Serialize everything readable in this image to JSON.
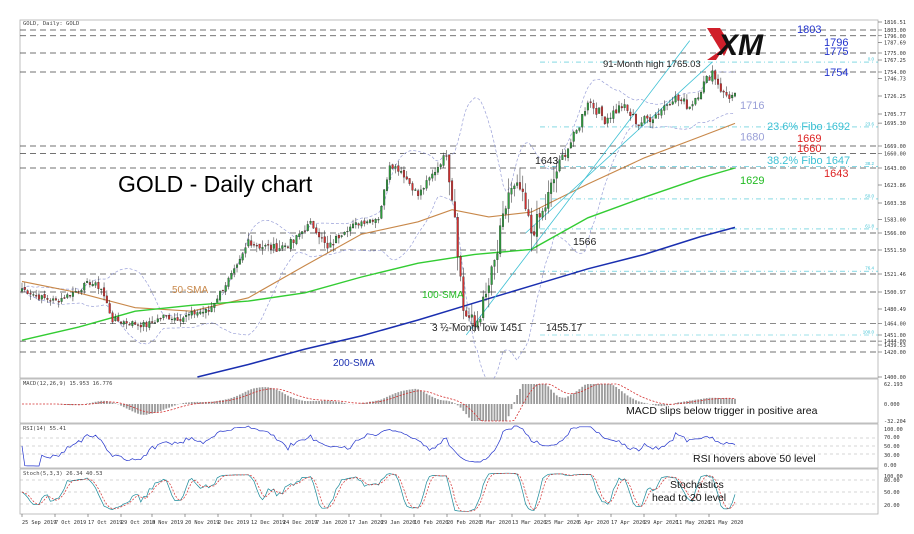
{
  "header": {
    "label": "GOLD, Daily: GOLD"
  },
  "logo": {
    "text": "XM"
  },
  "title": "GOLD - Daily chart",
  "colors": {
    "bull": "#2e9e3e",
    "bear": "#d43030",
    "sma50": "#c8884a",
    "sma100": "#33cc33",
    "sma200": "#1a2fb0",
    "bband": "#9aa0d8",
    "fibo": "#3fc1d4",
    "blue_label": "#2233cc",
    "red_label": "#dd2222",
    "green_label": "#22bb22"
  },
  "chart_data": [
    {
      "type": "candlestick",
      "title": "GOLD - Daily chart",
      "ylim": [
        1400,
        1820
      ],
      "x_ticks": [
        "25 Sep 2019",
        "7 Oct 2019",
        "17 Oct 2019",
        "29 Oct 2019",
        "8 Nov 2019",
        "20 Nov 2019",
        "2 Dec 2019",
        "12 Dec 2019",
        "24 Dec 2019",
        "7 Jan 2020",
        "17 Jan 2020",
        "29 Jan 2020",
        "10 Feb 2020",
        "20 Feb 2020",
        "3 Mar 2020",
        "13 Mar 2020",
        "25 Mar 2020",
        "6 Apr 2020",
        "17 Apr 2020",
        "29 Apr 2020",
        "11 May 2020",
        "21 May 2020"
      ],
      "y_ticks": [
        "1816.51",
        "1803.00",
        "1796.00",
        "1787.69",
        "1775.00",
        "1767.25",
        "1754.00",
        "1746.73",
        "1726.25",
        "1705.77",
        "1695.30",
        "1669.00",
        "1660.00",
        "1643.00",
        "1623.86",
        "1603.38",
        "1583.00",
        "1566.00",
        "1551.50",
        "1521.46",
        "1500.97",
        "1480.49",
        "1464.00",
        "1451.00",
        "1444.00",
        "1439.53",
        "1420.00",
        "1400.00"
      ],
      "levels": [
        {
          "value": 1803,
          "label": "1803",
          "color": "#2233cc"
        },
        {
          "value": 1796,
          "label": "1796",
          "color": "#2233cc"
        },
        {
          "value": 1775,
          "label": "1775",
          "color": "#2233cc"
        },
        {
          "value": 1754,
          "label": "1754",
          "color": "#2233cc"
        },
        {
          "value": 1716,
          "label": "1716",
          "color": "#9aa0d8"
        },
        {
          "value": 1692,
          "label": "23.6% Fibo 1692",
          "color": "#3fc1d4"
        },
        {
          "value": 1680,
          "label": "1680",
          "color": "#9aa0d8"
        },
        {
          "value": 1669,
          "label": "1669",
          "color": "#dd2222"
        },
        {
          "value": 1660,
          "label": "1660",
          "color": "#dd2222"
        },
        {
          "value": 1647,
          "label": "38.2% Fibo 1647",
          "color": "#3fc1d4"
        },
        {
          "value": 1643,
          "label": "1643",
          "color": "#dd2222"
        },
        {
          "value": 1629,
          "label": "1629",
          "color": "#22bb22"
        }
      ],
      "fibo_labels": [
        "0.0",
        "23.6",
        "38.2",
        "50.0",
        "61.8",
        "76.4",
        "100.0"
      ],
      "annotations": [
        {
          "text": "91-Month high 1765.03"
        },
        {
          "text": "1643"
        },
        {
          "text": "1566"
        },
        {
          "text": "3 ½-Month low 1451"
        },
        {
          "text": "1455.17"
        },
        {
          "text": "50-SMA"
        },
        {
          "text": "100-SMA"
        },
        {
          "text": "200-SMA"
        }
      ],
      "close_anchors": [
        [
          0,
          1505
        ],
        [
          6,
          1495
        ],
        [
          12,
          1490
        ],
        [
          18,
          1500
        ],
        [
          24,
          1512
        ],
        [
          28,
          1505
        ],
        [
          32,
          1468
        ],
        [
          38,
          1465
        ],
        [
          44,
          1462
        ],
        [
          50,
          1472
        ],
        [
          56,
          1470
        ],
        [
          62,
          1477
        ],
        [
          66,
          1478
        ],
        [
          70,
          1500
        ],
        [
          76,
          1530
        ],
        [
          80,
          1560
        ],
        [
          84,
          1555
        ],
        [
          90,
          1553
        ],
        [
          96,
          1558
        ],
        [
          102,
          1578
        ],
        [
          108,
          1552
        ],
        [
          114,
          1570
        ],
        [
          120,
          1580
        ],
        [
          126,
          1585
        ],
        [
          130,
          1648
        ],
        [
          134,
          1640
        ],
        [
          140,
          1612
        ],
        [
          146,
          1640
        ],
        [
          150,
          1660
        ],
        [
          153,
          1590
        ],
        [
          156,
          1480
        ],
        [
          160,
          1460
        ],
        [
          164,
          1495
        ],
        [
          168,
          1548
        ],
        [
          172,
          1615
        ],
        [
          176,
          1618
        ],
        [
          180,
          1568
        ],
        [
          184,
          1590
        ],
        [
          190,
          1650
        ],
        [
          196,
          1685
        ],
        [
          200,
          1722
        ],
        [
          206,
          1700
        ],
        [
          212,
          1715
        ],
        [
          218,
          1695
        ],
        [
          224,
          1705
        ],
        [
          230,
          1725
        ],
        [
          236,
          1715
        ],
        [
          240,
          1735
        ],
        [
          244,
          1755
        ],
        [
          248,
          1728
        ],
        [
          252,
          1725
        ]
      ],
      "series": [
        {
          "name": "50-SMA",
          "points": [
            [
              0,
              1513
            ],
            [
              20,
              1500
            ],
            [
              40,
              1482
            ],
            [
              60,
              1478
            ],
            [
              80,
              1494
            ],
            [
              100,
              1532
            ],
            [
              120,
              1565
            ],
            [
              140,
              1580
            ],
            [
              152,
              1595
            ],
            [
              165,
              1586
            ],
            [
              180,
              1592
            ],
            [
              200,
              1625
            ],
            [
              220,
              1655
            ],
            [
              240,
              1680
            ],
            [
              252,
              1695
            ]
          ]
        },
        {
          "name": "100-SMA",
          "points": [
            [
              0,
              1445
            ],
            [
              20,
              1460
            ],
            [
              40,
              1478
            ],
            [
              60,
              1485
            ],
            [
              80,
              1490
            ],
            [
              100,
              1500
            ],
            [
              120,
              1518
            ],
            [
              140,
              1535
            ],
            [
              160,
              1546
            ],
            [
              180,
              1552
            ],
            [
              200,
              1585
            ],
            [
              220,
              1610
            ],
            [
              240,
              1632
            ],
            [
              252,
              1643
            ]
          ]
        },
        {
          "name": "200-SMA",
          "points": [
            [
              62,
              1400
            ],
            [
              80,
              1410
            ],
            [
              100,
              1428
            ],
            [
              120,
              1450
            ],
            [
              140,
              1468
            ],
            [
              160,
              1488
            ],
            [
              180,
              1508
            ],
            [
              200,
              1528
            ],
            [
              220,
              1546
            ],
            [
              240,
              1563
            ],
            [
              252,
              1573
            ]
          ]
        }
      ]
    },
    {
      "type": "histogram",
      "title": "MACD(12,26,9) 15.953 16.776",
      "y_ticks": [
        "62.193",
        "0.000",
        "-32.204"
      ],
      "annotation": "MACD slips below trigger in positive area"
    },
    {
      "type": "line",
      "title": "RSI(14) 55.41",
      "y_ticks": [
        "100.00",
        "70.00",
        "50.00",
        "30.00",
        "0.00"
      ],
      "annotation": "RSI hovers above 50 level"
    },
    {
      "type": "line",
      "title": "Stoch(5,3,3) 26.34 40.53",
      "y_ticks": [
        "100.00",
        "80.00",
        "50.00",
        "20.00"
      ],
      "annotation": "Stochastics head to 20 level"
    }
  ]
}
